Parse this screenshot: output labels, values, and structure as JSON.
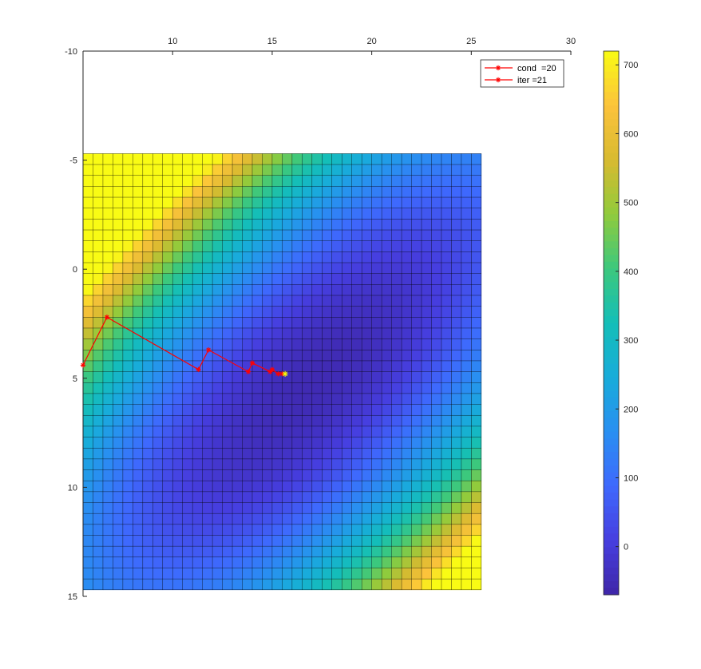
{
  "chart_data": {
    "type": "heatmap",
    "title": "",
    "xlabel": "",
    "ylabel": "",
    "x_axis_location": "top",
    "y_axis_direction": "reverse",
    "xlim": [
      5.5,
      30
    ],
    "ylim": [
      -10,
      15
    ],
    "xticks": [
      "10",
      "15",
      "20",
      "25",
      "30"
    ],
    "yticks": [
      "-10",
      "-5",
      "0",
      "5",
      "10",
      "15"
    ],
    "surface": {
      "x_range": [
        5.5,
        25.5
      ],
      "y_range": [
        -5.3,
        14.7
      ],
      "rows": 40,
      "cols": 40,
      "mesh_edges": true
    },
    "colorbar": {
      "range": [
        -70,
        720
      ],
      "ticks": [
        "0",
        "100",
        "200",
        "300",
        "400",
        "500",
        "600",
        "700"
      ],
      "colormap": "parula"
    },
    "series": [
      {
        "name": "cond  =20",
        "color": "#ff0000",
        "marker": "*",
        "points": [
          [
            5.5,
            4.4
          ],
          [
            6.7,
            2.2
          ],
          [
            11.3,
            4.6
          ],
          [
            11.8,
            3.7
          ],
          [
            13.8,
            4.7
          ],
          [
            14.0,
            4.3
          ],
          [
            14.9,
            4.7
          ],
          [
            15.0,
            4.6
          ],
          [
            15.3,
            4.8
          ],
          [
            15.5,
            4.8
          ]
        ]
      },
      {
        "name": "iter =21",
        "color": "#ff0000",
        "marker": "*"
      }
    ],
    "end_point": {
      "x": 15.65,
      "y": 4.8,
      "color": "#ffff00",
      "marker": "*"
    },
    "legend_position": "top-right",
    "grid": false
  }
}
